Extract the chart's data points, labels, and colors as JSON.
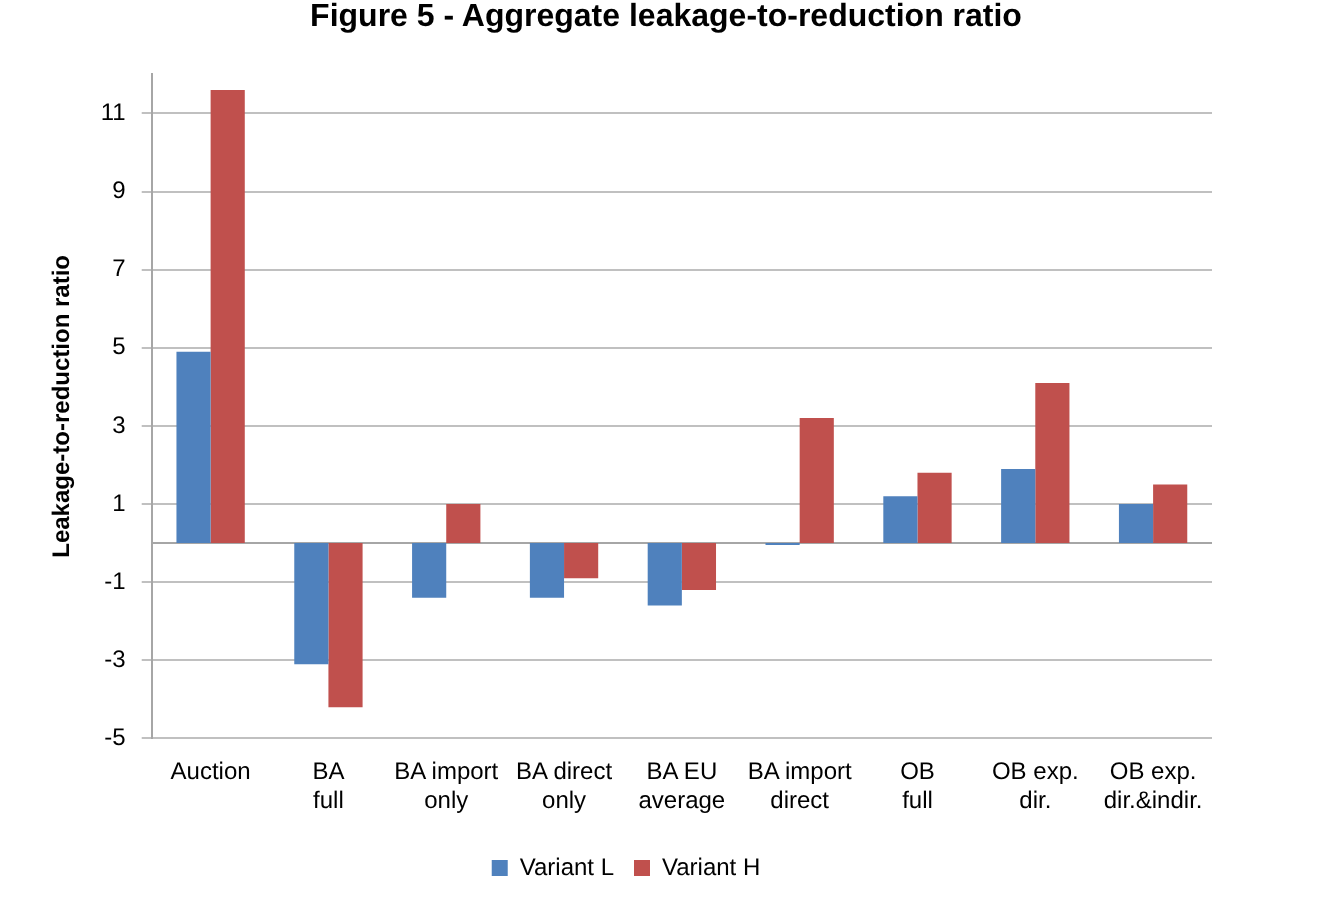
{
  "chart_data": {
    "type": "bar",
    "title": "Figure 5 - Aggregate leakage-to-reduction ratio",
    "ylabel": "Leakage-to-reduction ratio",
    "categories": [
      "Auction",
      "BA full",
      "BA import only",
      "BA direct only",
      "BA EU average",
      "BA import direct",
      "OB full",
      "OB exp. dir.",
      "OB exp. dir.&indir."
    ],
    "series": [
      {
        "name": "Variant L",
        "color": "#4f81bd",
        "values": [
          4.9,
          -3.1,
          -1.4,
          -1.4,
          -1.6,
          -0.05,
          1.2,
          1.9,
          1.0
        ]
      },
      {
        "name": "Variant H",
        "color": "#c0504d",
        "values": [
          11.6,
          -4.2,
          1.0,
          -0.9,
          -1.2,
          3.2,
          1.8,
          4.1,
          1.5
        ]
      }
    ],
    "ylim": [
      -5,
      12
    ],
    "yticks": [
      -5,
      -3,
      -1,
      1,
      3,
      5,
      7,
      9,
      11
    ],
    "grid": "y",
    "legend": "bottom"
  }
}
